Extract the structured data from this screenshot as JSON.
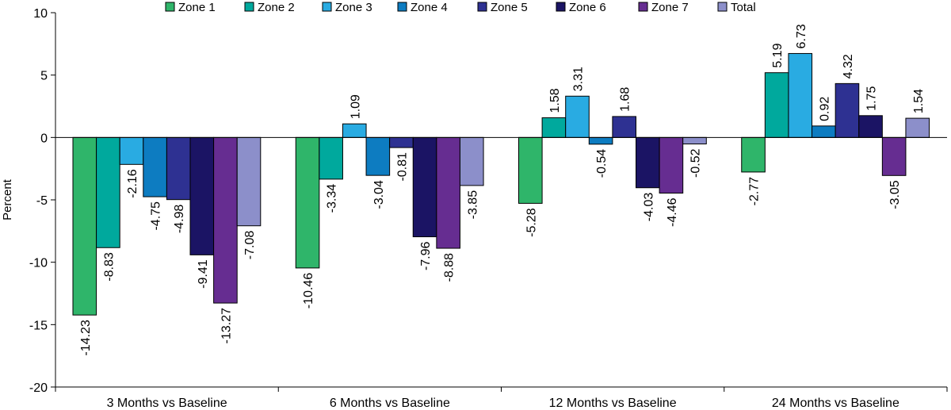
{
  "chart_data": {
    "type": "bar",
    "title": "",
    "xlabel": "",
    "ylabel": "Percent",
    "ylim": [
      -20,
      10
    ],
    "yticks": [
      "10",
      "5",
      "0",
      "-5",
      "-10",
      "-15",
      "-20"
    ],
    "ytick_values": [
      10,
      5,
      0,
      -5,
      -10,
      -15,
      -20
    ],
    "legend_position": "top",
    "categories": [
      "3 Months vs Baseline",
      "6 Months vs Baseline",
      "12 Months vs Baseline",
      "24 Months vs Baseline"
    ],
    "series": [
      {
        "name": "Zone 1",
        "color": "#2fb56a",
        "values": [
          -14.23,
          -10.46,
          -5.28,
          -2.77
        ],
        "labels": [
          "-14.23",
          "-10.46",
          "-5.28",
          "-2.77"
        ]
      },
      {
        "name": "Zone 2",
        "color": "#00a99d",
        "values": [
          -8.83,
          -3.34,
          1.58,
          5.19
        ],
        "labels": [
          "-8.83",
          "-3.34",
          "1.58",
          "5.19"
        ]
      },
      {
        "name": "Zone 3",
        "color": "#29abe2",
        "values": [
          -2.16,
          1.09,
          3.31,
          6.73
        ],
        "labels": [
          "-2.16",
          "1.09",
          "3.31",
          "6.73"
        ]
      },
      {
        "name": "Zone 4",
        "color": "#0d7cc1",
        "values": [
          -4.75,
          -3.04,
          -0.54,
          0.92
        ],
        "labels": [
          "-4.75",
          "-3.04",
          "-0.54",
          "0.92"
        ]
      },
      {
        "name": "Zone 5",
        "color": "#2e3192",
        "values": [
          -4.98,
          -0.81,
          1.68,
          4.32
        ],
        "labels": [
          "-4.98",
          "-0.81",
          "1.68",
          "4.32"
        ]
      },
      {
        "name": "Zone 6",
        "color": "#1b1464",
        "values": [
          -9.41,
          -7.96,
          -4.03,
          1.75
        ],
        "labels": [
          "-9.41",
          "-7.96",
          "-4.03",
          "1.75"
        ]
      },
      {
        "name": "Zone 7",
        "color": "#662d91",
        "values": [
          -13.27,
          -8.88,
          -4.46,
          -3.05
        ],
        "labels": [
          "-13.27",
          "-8.88",
          "-4.46",
          "-3.05"
        ]
      },
      {
        "name": "Total",
        "color": "#8c8fca",
        "values": [
          -7.08,
          -3.85,
          -0.52,
          1.54
        ],
        "labels": [
          "-7.08",
          "-3.85",
          "-0.52",
          "1.54"
        ]
      }
    ]
  }
}
